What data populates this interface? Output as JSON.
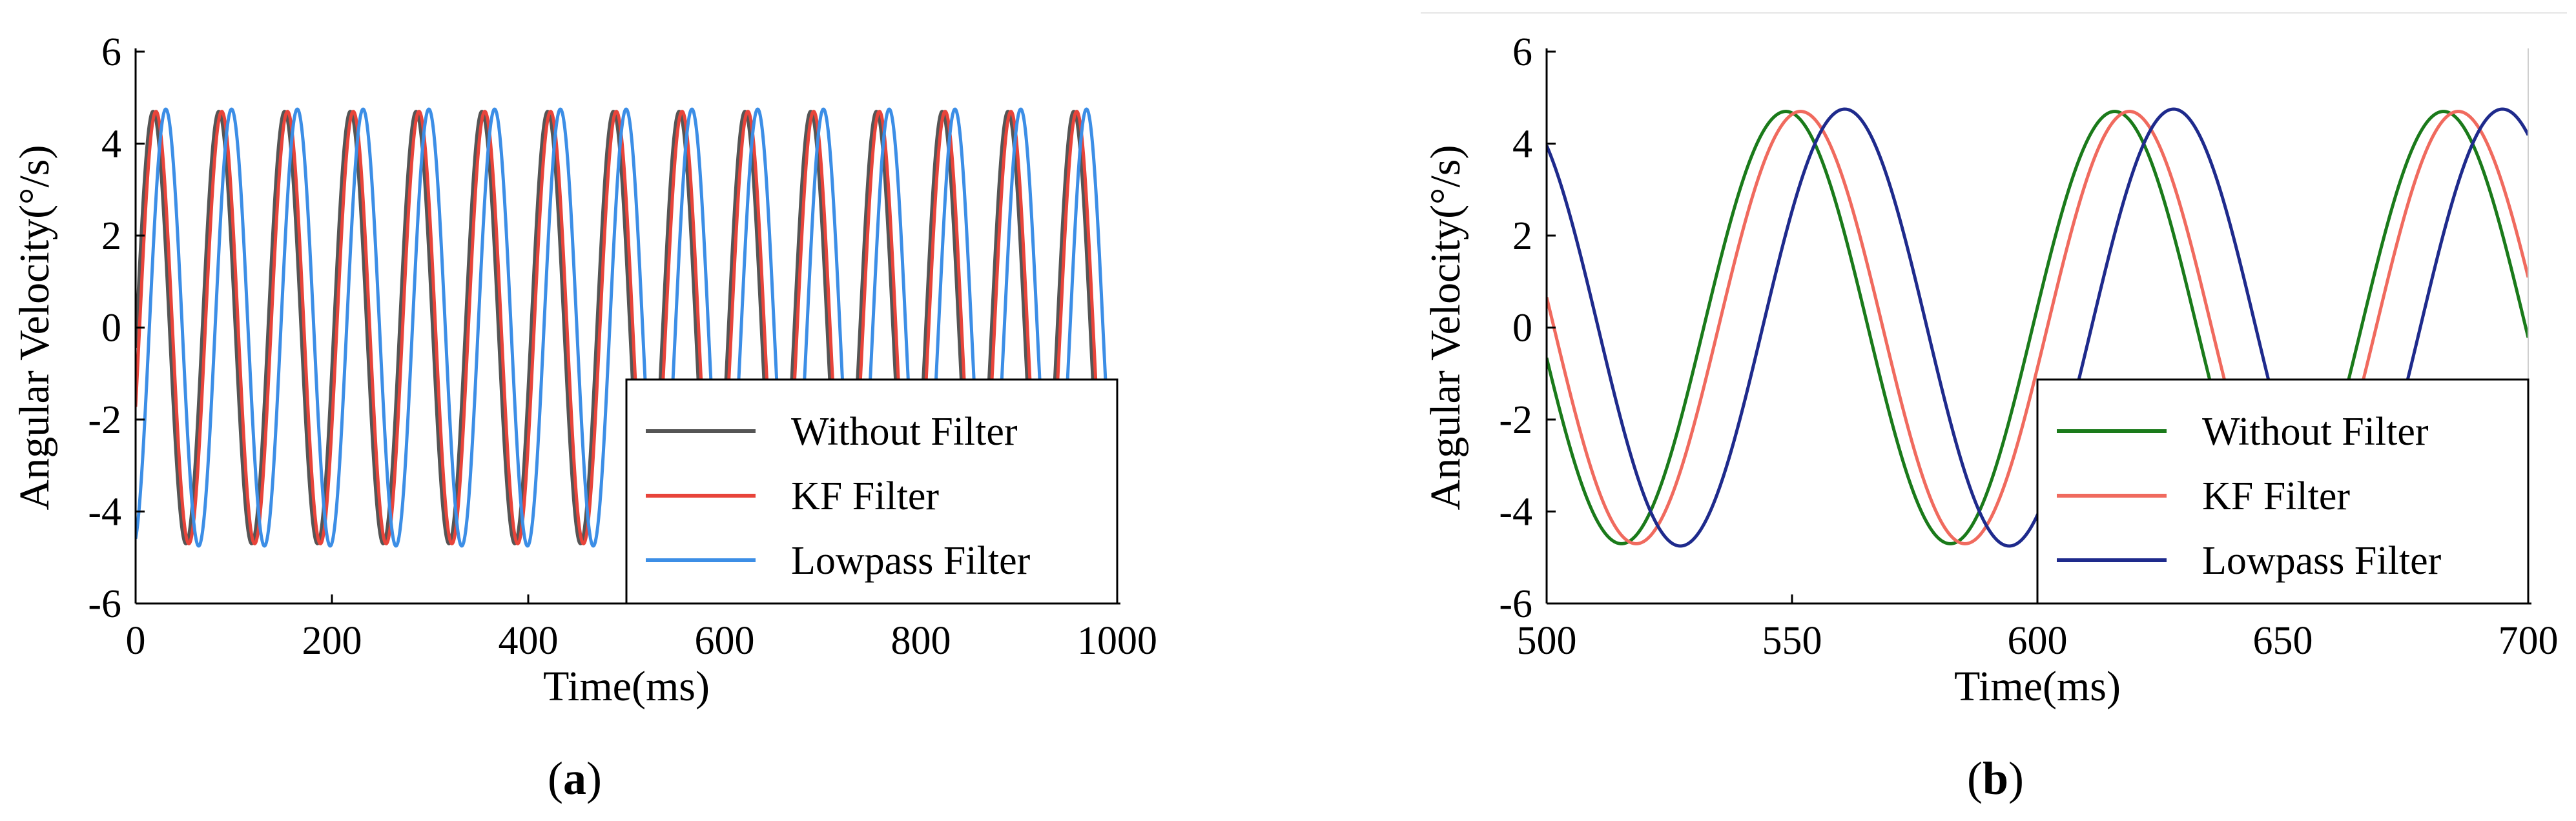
{
  "figure_title": "",
  "chart_data": [
    {
      "type": "line",
      "panel_label": "a",
      "title": "",
      "xlabel": "Time(ms)",
      "ylabel": "Angular Velocity(°/s)",
      "xlim": [
        0,
        1000
      ],
      "ylim": [
        -6,
        6
      ],
      "xticks": [
        0,
        200,
        400,
        600,
        800,
        1000
      ],
      "yticks": [
        -6,
        -4,
        -2,
        0,
        2,
        4,
        6
      ],
      "grid": false,
      "legend_position": "bottom-right",
      "signal": {
        "amplitude": 4.7,
        "period_ms": 67,
        "phase_zero_ms": 1
      },
      "series": [
        {
          "name": "Without Filter",
          "color": "#555555",
          "delay_ms": 0,
          "amplitude": 4.7
        },
        {
          "name": "KF Filter",
          "color": "#e8443a",
          "delay_ms": 3,
          "amplitude": 4.7
        },
        {
          "name": "Lowpass Filter",
          "color": "#3c8ee6",
          "delay_ms": 13,
          "amplitude": 4.75
        }
      ]
    },
    {
      "type": "line",
      "panel_label": "b",
      "title": "",
      "xlabel": "Time(ms)",
      "ylabel": "Angular Velocity(°/s)",
      "xlim": [
        500,
        700
      ],
      "ylim": [
        -6,
        6
      ],
      "xticks": [
        500,
        550,
        600,
        650,
        700
      ],
      "yticks": [
        -6,
        -4,
        -2,
        0,
        2,
        4,
        6
      ],
      "grid": false,
      "legend_position": "bottom-right",
      "signal": {
        "amplitude": 4.7,
        "period_ms": 67,
        "phase_zero_ms": 532
      },
      "series": [
        {
          "name": "Without Filter",
          "color": "#1a7a1a",
          "delay_ms": 0,
          "amplitude": 4.7
        },
        {
          "name": "KF Filter",
          "color": "#f06a5e",
          "delay_ms": 3,
          "amplitude": 4.7
        },
        {
          "name": "Lowpass Filter",
          "color": "#1e2a8c",
          "delay_ms": 12,
          "amplitude": 4.75
        }
      ]
    }
  ]
}
